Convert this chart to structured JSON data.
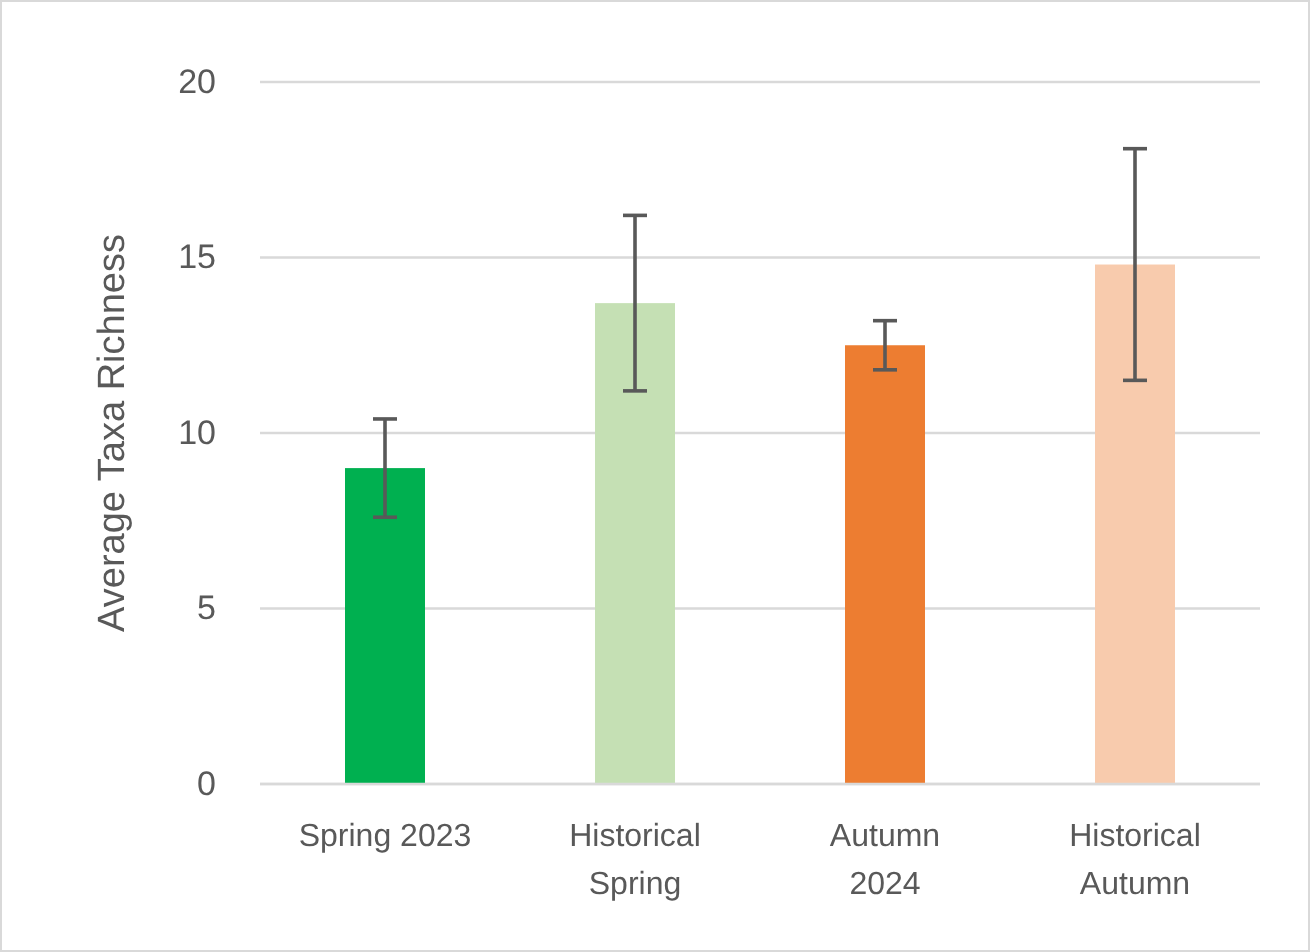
{
  "chart_data": {
    "type": "bar",
    "ylabel": "Average Taxa Richness",
    "categories": [
      "Spring 2023",
      "Historical Spring",
      "Autumn 2024",
      "Historical Autumn"
    ],
    "values": [
      9.0,
      13.7,
      12.5,
      14.8
    ],
    "colors": [
      "#00b050",
      "#c5e0b4",
      "#ed7d31",
      "#f8cbad"
    ],
    "errors": [
      1.4,
      2.5,
      0.7,
      3.3
    ],
    "ylim": [
      0,
      20
    ],
    "yticks": [
      0,
      5,
      10,
      15,
      20
    ],
    "grid": "y"
  }
}
